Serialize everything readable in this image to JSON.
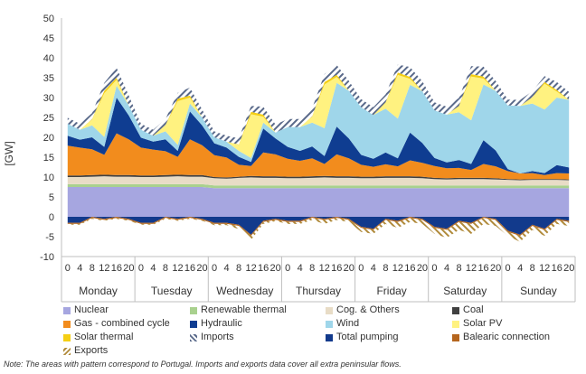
{
  "chart_data": {
    "type": "area",
    "ylabel": "[GW]",
    "ylim": [
      -10,
      50
    ],
    "yticks": [
      -10,
      -5,
      0,
      5,
      10,
      15,
      20,
      25,
      30,
      35,
      40,
      45,
      50
    ],
    "days": [
      "Monday",
      "Tuesday",
      "Wednesday",
      "Thursday",
      "Friday",
      "Saturday",
      "Sunday"
    ],
    "hour_ticks": [
      "0",
      "4",
      "8",
      "12",
      "16",
      "20"
    ],
    "hours_per_step": 4,
    "colors": {
      "Nuclear": "#a6a6e0",
      "Renewable thermal": "#a9d18e",
      "Cog. & Others": "#e8dcc6",
      "Coal": "#404040",
      "Gas - combined cycle": "#f28c1d",
      "Hydraulic": "#0f3d91",
      "Wind": "#9fd6ea",
      "Solar PV": "#fff280",
      "Solar thermal": "#f5cf14",
      "Imports": "#7a8aa8",
      "Total pumping": "#123a8c",
      "Balearic connection": "#b5651d",
      "Exports": "#b08a3a"
    },
    "series": [
      {
        "name": "Nuclear",
        "values": [
          7.5,
          7.5,
          7.5,
          7.5,
          7.5,
          7.5,
          7.5,
          7.5,
          7.5,
          7.5,
          7.5,
          7.5,
          7.2,
          7.2,
          7.2,
          7.2,
          7.2,
          7.2,
          7.2,
          7.2,
          7.2,
          7.2,
          7.2,
          7.2,
          7.2,
          7.2,
          7.2,
          7.2,
          7.2,
          7.2,
          7.2,
          7.2,
          7.2,
          7.2,
          7.2,
          7.2,
          7.2,
          7.2,
          7.2,
          7.2,
          7.2,
          7.2
        ]
      },
      {
        "name": "Renewable thermal",
        "values": [
          0.7,
          0.7,
          0.7,
          0.7,
          0.7,
          0.7,
          0.7,
          0.7,
          0.7,
          0.7,
          0.7,
          0.7,
          0.7,
          0.7,
          0.7,
          0.7,
          0.7,
          0.7,
          0.7,
          0.7,
          0.7,
          0.7,
          0.7,
          0.7,
          0.7,
          0.7,
          0.7,
          0.7,
          0.7,
          0.7,
          0.7,
          0.7,
          0.7,
          0.7,
          0.7,
          0.7,
          0.7,
          0.7,
          0.7,
          0.7,
          0.7,
          0.7
        ]
      },
      {
        "name": "Cog. & Others",
        "values": [
          1.8,
          1.8,
          1.9,
          2.0,
          1.9,
          1.9,
          1.8,
          1.8,
          1.9,
          2.0,
          1.9,
          1.9,
          1.8,
          1.7,
          1.9,
          2.0,
          1.9,
          1.9,
          1.8,
          1.8,
          1.9,
          2.0,
          1.9,
          1.9,
          1.8,
          1.8,
          1.9,
          1.9,
          1.9,
          1.8,
          1.6,
          1.5,
          1.6,
          1.6,
          1.6,
          1.5,
          1.4,
          1.3,
          1.4,
          1.4,
          1.4,
          1.3
        ]
      },
      {
        "name": "Coal",
        "values": [
          0.4,
          0.4,
          0.4,
          0.4,
          0.4,
          0.4,
          0.4,
          0.4,
          0.4,
          0.4,
          0.4,
          0.4,
          0.3,
          0.3,
          0.3,
          0.4,
          0.4,
          0.4,
          0.4,
          0.4,
          0.4,
          0.4,
          0.4,
          0.4,
          0.4,
          0.4,
          0.4,
          0.4,
          0.4,
          0.4,
          0.3,
          0.3,
          0.3,
          0.3,
          0.3,
          0.3,
          0.2,
          0.2,
          0.2,
          0.2,
          0.2,
          0.2
        ]
      },
      {
        "name": "Gas - combined cycle",
        "values": [
          7.5,
          7.0,
          6.5,
          5.0,
          10.5,
          9.0,
          7.0,
          6.5,
          6.0,
          4.5,
          9.0,
          7.5,
          5.5,
          5.0,
          3.0,
          2.5,
          6.0,
          5.5,
          4.5,
          4.0,
          4.5,
          3.0,
          5.5,
          4.5,
          3.0,
          2.5,
          3.0,
          2.5,
          4.0,
          3.5,
          3.0,
          2.5,
          2.5,
          2.0,
          3.5,
          3.0,
          2.0,
          1.5,
          1.5,
          1.0,
          1.5,
          1.5
        ]
      },
      {
        "name": "Hydraulic",
        "values": [
          2.5,
          2.0,
          3.0,
          2.0,
          9.0,
          6.0,
          2.5,
          2.0,
          3.0,
          1.5,
          7.0,
          5.0,
          3.0,
          2.5,
          2.0,
          1.0,
          6.0,
          4.0,
          3.0,
          2.5,
          3.0,
          2.0,
          7.0,
          5.0,
          2.5,
          2.0,
          3.0,
          2.0,
          7.0,
          5.0,
          2.0,
          1.5,
          2.0,
          1.5,
          6.0,
          4.0,
          0.5,
          0.0,
          0.5,
          0.5,
          2.0,
          1.5
        ]
      },
      {
        "name": "Wind",
        "values": [
          3.0,
          2.5,
          3.0,
          2.5,
          3.0,
          2.5,
          2.0,
          1.5,
          2.0,
          1.5,
          2.0,
          2.0,
          1.5,
          1.5,
          1.5,
          1.0,
          1.5,
          1.5,
          5.0,
          6.0,
          6.0,
          7.0,
          11.0,
          12.0,
          12.0,
          11.0,
          11.0,
          10.0,
          12.0,
          13.0,
          12.0,
          12.0,
          12.0,
          11.0,
          14.0,
          15.0,
          16.0,
          17.0,
          17.0,
          16.0,
          17.0,
          17.0
        ]
      },
      {
        "name": "Solar PV",
        "values": [
          0.0,
          0.0,
          1.5,
          11.0,
          1.5,
          0.0,
          0.0,
          0.0,
          1.5,
          11.0,
          1.5,
          0.0,
          0.0,
          0.0,
          1.5,
          11.0,
          1.5,
          0.0,
          0.0,
          0.0,
          1.5,
          11.0,
          1.5,
          0.0,
          0.0,
          0.0,
          1.5,
          11.0,
          1.5,
          0.0,
          0.0,
          0.0,
          1.5,
          11.0,
          1.5,
          0.0,
          0.0,
          0.0,
          1.5,
          6.5,
          1.5,
          0.0
        ]
      },
      {
        "name": "Solar thermal",
        "values": [
          0.0,
          0.0,
          0.1,
          0.6,
          0.5,
          0.0,
          0.0,
          0.0,
          0.1,
          0.6,
          0.5,
          0.0,
          0.0,
          0.0,
          0.1,
          0.6,
          0.5,
          0.0,
          0.0,
          0.0,
          0.1,
          0.6,
          0.5,
          0.0,
          0.0,
          0.0,
          0.1,
          0.6,
          0.5,
          0.0,
          0.0,
          0.0,
          0.1,
          0.6,
          0.5,
          0.0,
          0.0,
          0.0,
          0.1,
          0.4,
          0.4,
          0.0
        ]
      },
      {
        "name": "Imports",
        "values": [
          1.5,
          1.5,
          1.5,
          2.0,
          2.5,
          2.5,
          1.5,
          1.5,
          1.5,
          1.5,
          2.0,
          2.0,
          1.5,
          1.5,
          1.5,
          1.5,
          2.0,
          2.0,
          2.0,
          2.0,
          2.0,
          2.0,
          2.5,
          2.5,
          2.0,
          2.0,
          2.0,
          2.0,
          2.5,
          2.5,
          2.0,
          2.0,
          2.0,
          2.0,
          2.5,
          2.5,
          1.5,
          1.5,
          1.5,
          1.5,
          2.0,
          2.0
        ]
      },
      {
        "name": "Total pumping",
        "values": [
          -1.5,
          -1.5,
          0.0,
          -0.5,
          0.0,
          -0.5,
          -1.5,
          -1.5,
          0.0,
          -0.5,
          0.0,
          -0.5,
          -1.5,
          -1.5,
          -2.0,
          -4.5,
          -1.0,
          -0.5,
          -1.0,
          -1.0,
          0.0,
          -0.5,
          0.0,
          -0.5,
          -2.5,
          -3.0,
          -0.5,
          -1.0,
          0.0,
          -0.5,
          -2.5,
          -3.0,
          -1.0,
          -1.5,
          0.0,
          -0.5,
          -3.5,
          -4.5,
          -2.0,
          -3.0,
          -0.5,
          -1.0
        ]
      },
      {
        "name": "Balearic connection",
        "values": [
          -0.3,
          -0.3,
          -0.3,
          -0.3,
          -0.3,
          -0.3,
          -0.3,
          -0.3,
          -0.3,
          -0.3,
          -0.3,
          -0.3,
          -0.3,
          -0.3,
          -0.3,
          -0.3,
          -0.3,
          -0.3,
          -0.3,
          -0.3,
          -0.3,
          -0.3,
          -0.3,
          -0.3,
          -0.3,
          -0.3,
          -0.3,
          -0.3,
          -0.3,
          -0.3,
          -0.3,
          -0.3,
          -0.3,
          -0.3,
          -0.3,
          -0.3,
          -0.3,
          -0.3,
          -0.3,
          -0.3,
          -0.3,
          -0.3
        ]
      },
      {
        "name": "Exports",
        "values": [
          -0.2,
          -0.2,
          -0.2,
          -0.2,
          -0.2,
          -0.2,
          -0.2,
          -0.2,
          -0.2,
          -0.2,
          -0.2,
          -0.2,
          -0.3,
          -0.3,
          -0.8,
          -1.0,
          -0.5,
          -0.3,
          -0.5,
          -0.5,
          -0.5,
          -1.0,
          -0.5,
          -0.5,
          -1.0,
          -1.0,
          -1.0,
          -1.5,
          -1.0,
          -1.0,
          -1.5,
          -2.0,
          -2.0,
          -2.5,
          -1.5,
          -1.5,
          -1.0,
          -1.5,
          -1.0,
          -1.5,
          -1.0,
          -1.0
        ]
      }
    ],
    "legend_placement": "bottom",
    "grid": false
  },
  "note": "Note: The areas with pattern correspond to Portugal. Imports and exports data cover all extra peninsular flows."
}
